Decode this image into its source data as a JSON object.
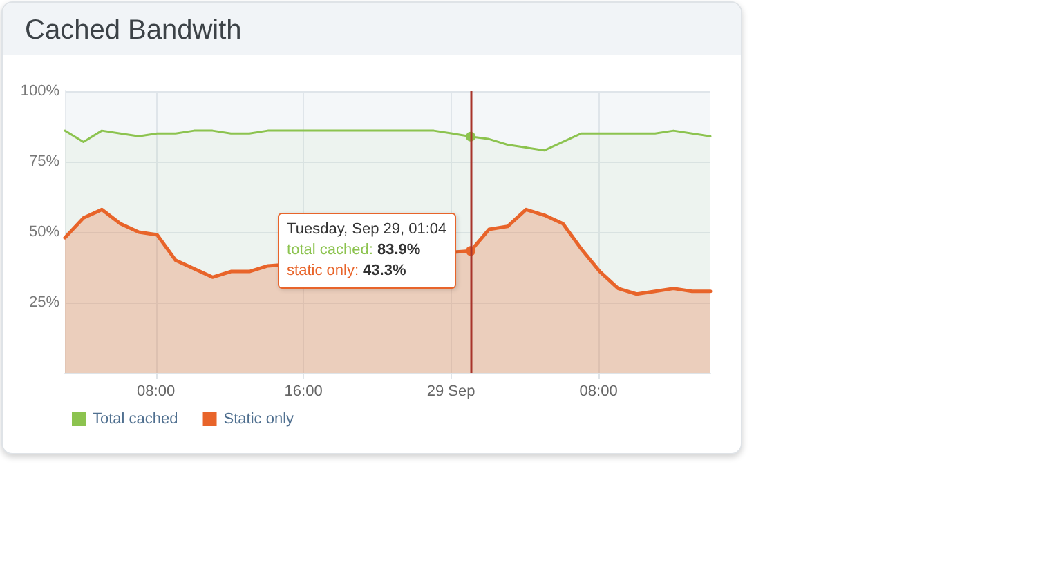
{
  "chart_data": {
    "type": "area",
    "title": "Cached Bandwith",
    "x": [
      "--09-28T03:04",
      "--09-28T04:04",
      "--09-28T05:04",
      "--09-28T06:04",
      "--09-28T07:04",
      "--09-28T08:04",
      "--09-28T09:04",
      "--09-28T10:04",
      "--09-28T11:04",
      "--09-28T12:04",
      "--09-28T13:04",
      "--09-28T14:04",
      "--09-28T15:04",
      "--09-28T16:04",
      "--09-28T17:04",
      "--09-28T18:04",
      "--09-28T19:04",
      "--09-28T20:04",
      "--09-28T21:04",
      "--09-28T22:04",
      "--09-28T23:04",
      "--09-29T00:04",
      "--09-29T01:04",
      "--09-29T02:04",
      "--09-29T03:04",
      "--09-29T04:04",
      "--09-29T05:04",
      "--09-29T06:04",
      "--09-29T07:04",
      "--09-29T08:04",
      "--09-29T09:04",
      "--09-29T10:04",
      "--09-29T11:04",
      "--09-29T12:04",
      "--09-29T13:04",
      "--09-29T14:04"
    ],
    "series": [
      {
        "name": "Total cached",
        "color": "#8cc34f",
        "values": [
          86,
          82,
          86,
          85,
          84,
          85,
          85,
          86,
          86,
          85,
          85,
          86,
          86,
          86,
          86,
          86,
          86,
          86,
          86,
          86,
          86,
          85,
          83.9,
          83,
          81,
          80,
          79,
          82,
          85,
          85,
          85,
          85,
          85,
          86,
          85,
          84
        ]
      },
      {
        "name": "Static only",
        "color": "#e8642a",
        "values": [
          48,
          55,
          58,
          53,
          50,
          49,
          40,
          37,
          34,
          36,
          36,
          38,
          null,
          null,
          null,
          null,
          null,
          null,
          null,
          null,
          null,
          null,
          43.3,
          51,
          52,
          58,
          56,
          53,
          44,
          36,
          30,
          28,
          29,
          30,
          29,
          29
        ]
      }
    ],
    "xlim": [
      "--09-28T03:04",
      "--09-29T14:04"
    ],
    "xticks": [
      {
        "value": "--09-28T08:00",
        "label": "08:00"
      },
      {
        "value": "--09-28T16:00",
        "label": "16:00"
      },
      {
        "value": "--09-29T00:00",
        "label": "29 Sep"
      },
      {
        "value": "--09-29T08:00",
        "label": "08:00"
      }
    ],
    "ylim": [
      0,
      100
    ],
    "yticks": [
      {
        "value": 25,
        "label": "25%"
      },
      {
        "value": 50,
        "label": "50%"
      },
      {
        "value": 75,
        "label": "75%"
      },
      {
        "value": 100,
        "label": "100%"
      }
    ],
    "grid": true,
    "legend": "bottom left",
    "ref_lines": [
      {
        "axis": "x",
        "value": "--09-29T01:04",
        "color": "#a8342b"
      }
    ],
    "annotations": [
      {
        "text": "Tuesday, Sep 29, 01:04",
        "x": "--09-29T01:04"
      },
      "total cached: 83.9%",
      "static only: 43.3%"
    ]
  }
}
